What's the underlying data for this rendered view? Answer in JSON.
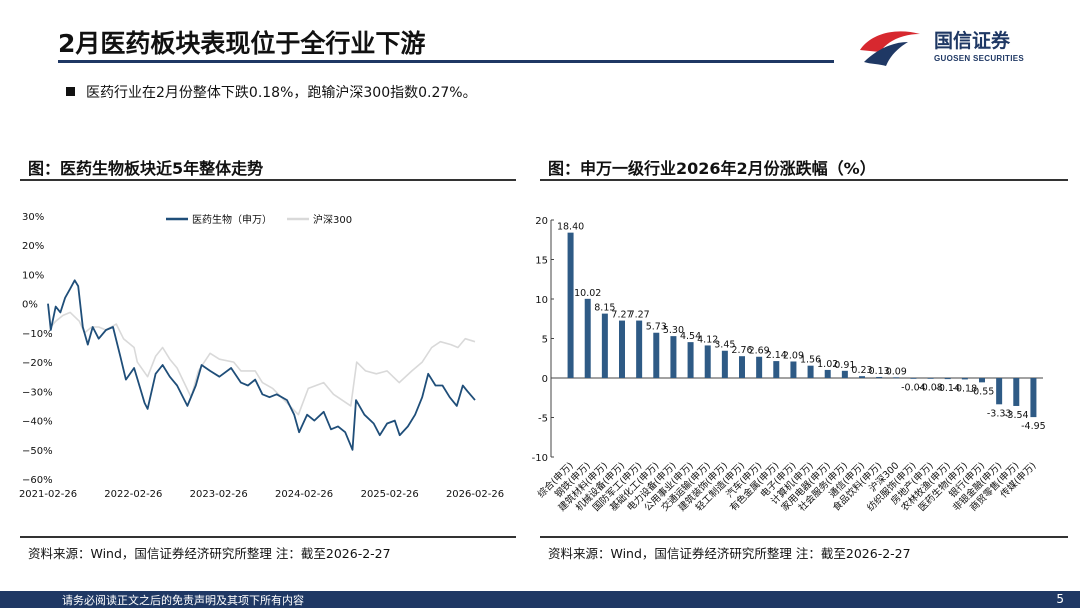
{
  "header": {
    "title": "2月医药板块表现位于全行业下游",
    "logo_name": "国信证券",
    "logo_sub": "GUOSEN SECURITIES"
  },
  "bullet": "医药行业在2月份整体下跌0.18%，跑输沪深300指数0.27%。",
  "left_panel": {
    "title": "图：医药生物板块近5年整体走势",
    "source": "资料来源：Wind，国信证券经济研究所整理 注：截至2026-2-27"
  },
  "right_panel": {
    "title": "图：申万一级行业2026年2月份涨跌幅（%）",
    "source": "资料来源：Wind，国信证券经济研究所整理 注：截至2026-2-27"
  },
  "footer": {
    "disclaimer": "请务必阅读正文之后的免责声明及其项下所有内容",
    "page": "5"
  },
  "colors": {
    "navy": "#1f3864",
    "bar": "#2e5a85",
    "hs300": "#d9d9d9"
  },
  "chart_data": [
    {
      "type": "line",
      "title": "",
      "xlabel": "",
      "ylabel": "",
      "legend_position": "top",
      "y_unit": "%",
      "ylim": [
        -60,
        30
      ],
      "yticks": [
        -60,
        -50,
        -40,
        -30,
        -20,
        -10,
        0,
        10,
        20,
        30
      ],
      "ytick_labels": [
        "−60%",
        "−50%",
        "−40%",
        "−30%",
        "−20%",
        "−10%",
        "0%",
        "10%",
        "20%",
        "30%"
      ],
      "xticks": [
        "2021-02-26",
        "2022-02-26",
        "2023-02-26",
        "2024-02-26",
        "2025-02-26",
        "2026-02-26"
      ],
      "grid": false,
      "series": [
        {
          "name": "医药生物（申万）",
          "color": "#1f4e79",
          "points": [
            [
              "2021-02-26",
              0
            ],
            [
              "2021-03-10",
              -9
            ],
            [
              "2021-03-31",
              -1
            ],
            [
              "2021-04-20",
              -3
            ],
            [
              "2021-05-10",
              2
            ],
            [
              "2021-05-31",
              5
            ],
            [
              "2021-06-20",
              8
            ],
            [
              "2021-07-05",
              6
            ],
            [
              "2021-07-25",
              -8
            ],
            [
              "2021-08-15",
              -14
            ],
            [
              "2021-09-05",
              -8
            ],
            [
              "2021-10-01",
              -12
            ],
            [
              "2021-11-01",
              -9
            ],
            [
              "2021-12-01",
              -8
            ],
            [
              "2022-01-01",
              -18
            ],
            [
              "2022-01-25",
              -26
            ],
            [
              "2022-03-01",
              -22
            ],
            [
              "2022-03-20",
              -27
            ],
            [
              "2022-04-15",
              -34
            ],
            [
              "2022-04-28",
              -36
            ],
            [
              "2022-06-01",
              -24
            ],
            [
              "2022-07-01",
              -21
            ],
            [
              "2022-08-01",
              -25
            ],
            [
              "2022-09-01",
              -28
            ],
            [
              "2022-10-15",
              -35
            ],
            [
              "2022-11-20",
              -28
            ],
            [
              "2022-12-15",
              -21
            ],
            [
              "2023-01-20",
              -23
            ],
            [
              "2023-03-01",
              -25
            ],
            [
              "2023-04-20",
              -22
            ],
            [
              "2023-06-01",
              -27
            ],
            [
              "2023-07-01",
              -28
            ],
            [
              "2023-08-01",
              -26
            ],
            [
              "2023-09-01",
              -31
            ],
            [
              "2023-10-01",
              -32
            ],
            [
              "2023-11-01",
              -31
            ],
            [
              "2023-12-15",
              -33
            ],
            [
              "2024-01-15",
              -38
            ],
            [
              "2024-02-05",
              -44
            ],
            [
              "2024-03-10",
              -38
            ],
            [
              "2024-04-10",
              -40
            ],
            [
              "2024-05-20",
              -37
            ],
            [
              "2024-06-20",
              -43
            ],
            [
              "2024-07-20",
              -42
            ],
            [
              "2024-08-20",
              -44
            ],
            [
              "2024-09-20",
              -50
            ],
            [
              "2024-10-05",
              -33
            ],
            [
              "2024-11-10",
              -38
            ],
            [
              "2024-12-20",
              -41
            ],
            [
              "2025-01-15",
              -45
            ],
            [
              "2025-02-15",
              -41
            ],
            [
              "2025-03-20",
              -40
            ],
            [
              "2025-04-10",
              -45
            ],
            [
              "2025-05-15",
              -42
            ],
            [
              "2025-06-15",
              -38
            ],
            [
              "2025-07-15",
              -32
            ],
            [
              "2025-08-10",
              -24
            ],
            [
              "2025-09-10",
              -28
            ],
            [
              "2025-10-10",
              -28
            ],
            [
              "2025-11-10",
              -32
            ],
            [
              "2025-12-10",
              -35
            ],
            [
              "2026-01-05",
              -28
            ],
            [
              "2026-01-25",
              -30
            ],
            [
              "2026-02-26",
              -33
            ]
          ]
        },
        {
          "name": "沪深300",
          "color": "#d9d9d9",
          "points": [
            [
              "2021-02-26",
              0
            ],
            [
              "2021-03-10",
              -8
            ],
            [
              "2021-03-31",
              -6
            ],
            [
              "2021-05-01",
              -4
            ],
            [
              "2021-06-01",
              -3
            ],
            [
              "2021-07-10",
              -6
            ],
            [
              "2021-08-01",
              -10
            ],
            [
              "2021-09-01",
              -8
            ],
            [
              "2021-10-01",
              -8
            ],
            [
              "2021-11-01",
              -9
            ],
            [
              "2021-12-15",
              -7
            ],
            [
              "2022-01-15",
              -12
            ],
            [
              "2022-03-01",
              -15
            ],
            [
              "2022-03-15",
              -20
            ],
            [
              "2022-04-28",
              -25
            ],
            [
              "2022-06-01",
              -18
            ],
            [
              "2022-07-01",
              -15
            ],
            [
              "2022-08-01",
              -19
            ],
            [
              "2022-09-01",
              -22
            ],
            [
              "2022-10-31",
              -32
            ],
            [
              "2022-12-01",
              -23
            ],
            [
              "2023-01-20",
              -17
            ],
            [
              "2023-03-01",
              -19
            ],
            [
              "2023-05-01",
              -20
            ],
            [
              "2023-06-01",
              -23
            ],
            [
              "2023-08-01",
              -23
            ],
            [
              "2023-09-01",
              -27
            ],
            [
              "2023-10-15",
              -29
            ],
            [
              "2023-12-15",
              -34
            ],
            [
              "2024-02-02",
              -38
            ],
            [
              "2024-03-15",
              -29
            ],
            [
              "2024-05-20",
              -27
            ],
            [
              "2024-07-01",
              -31
            ],
            [
              "2024-09-13",
              -35
            ],
            [
              "2024-10-08",
              -20
            ],
            [
              "2024-11-15",
              -23
            ],
            [
              "2024-12-31",
              -24
            ],
            [
              "2025-02-15",
              -23
            ],
            [
              "2025-04-08",
              -27
            ],
            [
              "2025-06-01",
              -23
            ],
            [
              "2025-07-15",
              -20
            ],
            [
              "2025-08-25",
              -15
            ],
            [
              "2025-10-01",
              -13
            ],
            [
              "2025-11-15",
              -14
            ],
            [
              "2025-12-15",
              -15
            ],
            [
              "2026-01-15",
              -12
            ],
            [
              "2026-02-26",
              -13
            ]
          ]
        }
      ]
    },
    {
      "type": "bar",
      "title": "",
      "xlabel": "",
      "ylabel": "",
      "ylim": [
        -10,
        20
      ],
      "yticks": [
        -10,
        -5,
        0,
        5,
        10,
        15,
        20
      ],
      "categories": [
        "综合(申万)",
        "钢铁(申万)",
        "建筑材料(申万)",
        "机械设备(申万)",
        "国防军工(申万)",
        "基础化工(申万)",
        "电力设备(申万)",
        "公用事业(申万)",
        "交通运输(申万)",
        "建筑装饰(申万)",
        "轻工制造(申万)",
        "汽车(申万)",
        "有色金属(申万)",
        "电子(申万)",
        "计算机(申万)",
        "家用电器(申万)",
        "社会服务(申万)",
        "通信(申万)",
        "食品饮料(申万)",
        "沪深300",
        "纺织服饰(申万)",
        "房地产(申万)",
        "农林牧渔(申万)",
        "医药生物(申万)",
        "银行(申万)",
        "非银金融(申万)",
        "商贸零售(申万)",
        "传媒(申万)"
      ],
      "values": [
        18.4,
        10.02,
        8.15,
        7.27,
        7.27,
        5.73,
        5.3,
        4.54,
        4.12,
        3.45,
        2.76,
        2.69,
        2.14,
        2.09,
        1.56,
        1.02,
        0.91,
        0.23,
        0.13,
        0.09,
        -0.04,
        -0.08,
        -0.14,
        -0.18,
        -0.55,
        -3.33,
        -3.54,
        -4.95
      ],
      "value_labels": [
        "18.40",
        "10.02",
        "8.15",
        "7.27",
        "7.27",
        "5.73",
        "5.30",
        "4.54",
        "4.12",
        "3.45",
        "2.76",
        "2.69",
        "2.14",
        "2.09",
        "1.56",
        "1.02",
        "0.91",
        "0.23",
        "0.13",
        "0.09",
        "-0.04",
        "-0.08",
        "-0.14",
        "-0.18",
        "-0.55",
        "-3.33",
        "-3.54",
        "-4.95"
      ]
    }
  ]
}
